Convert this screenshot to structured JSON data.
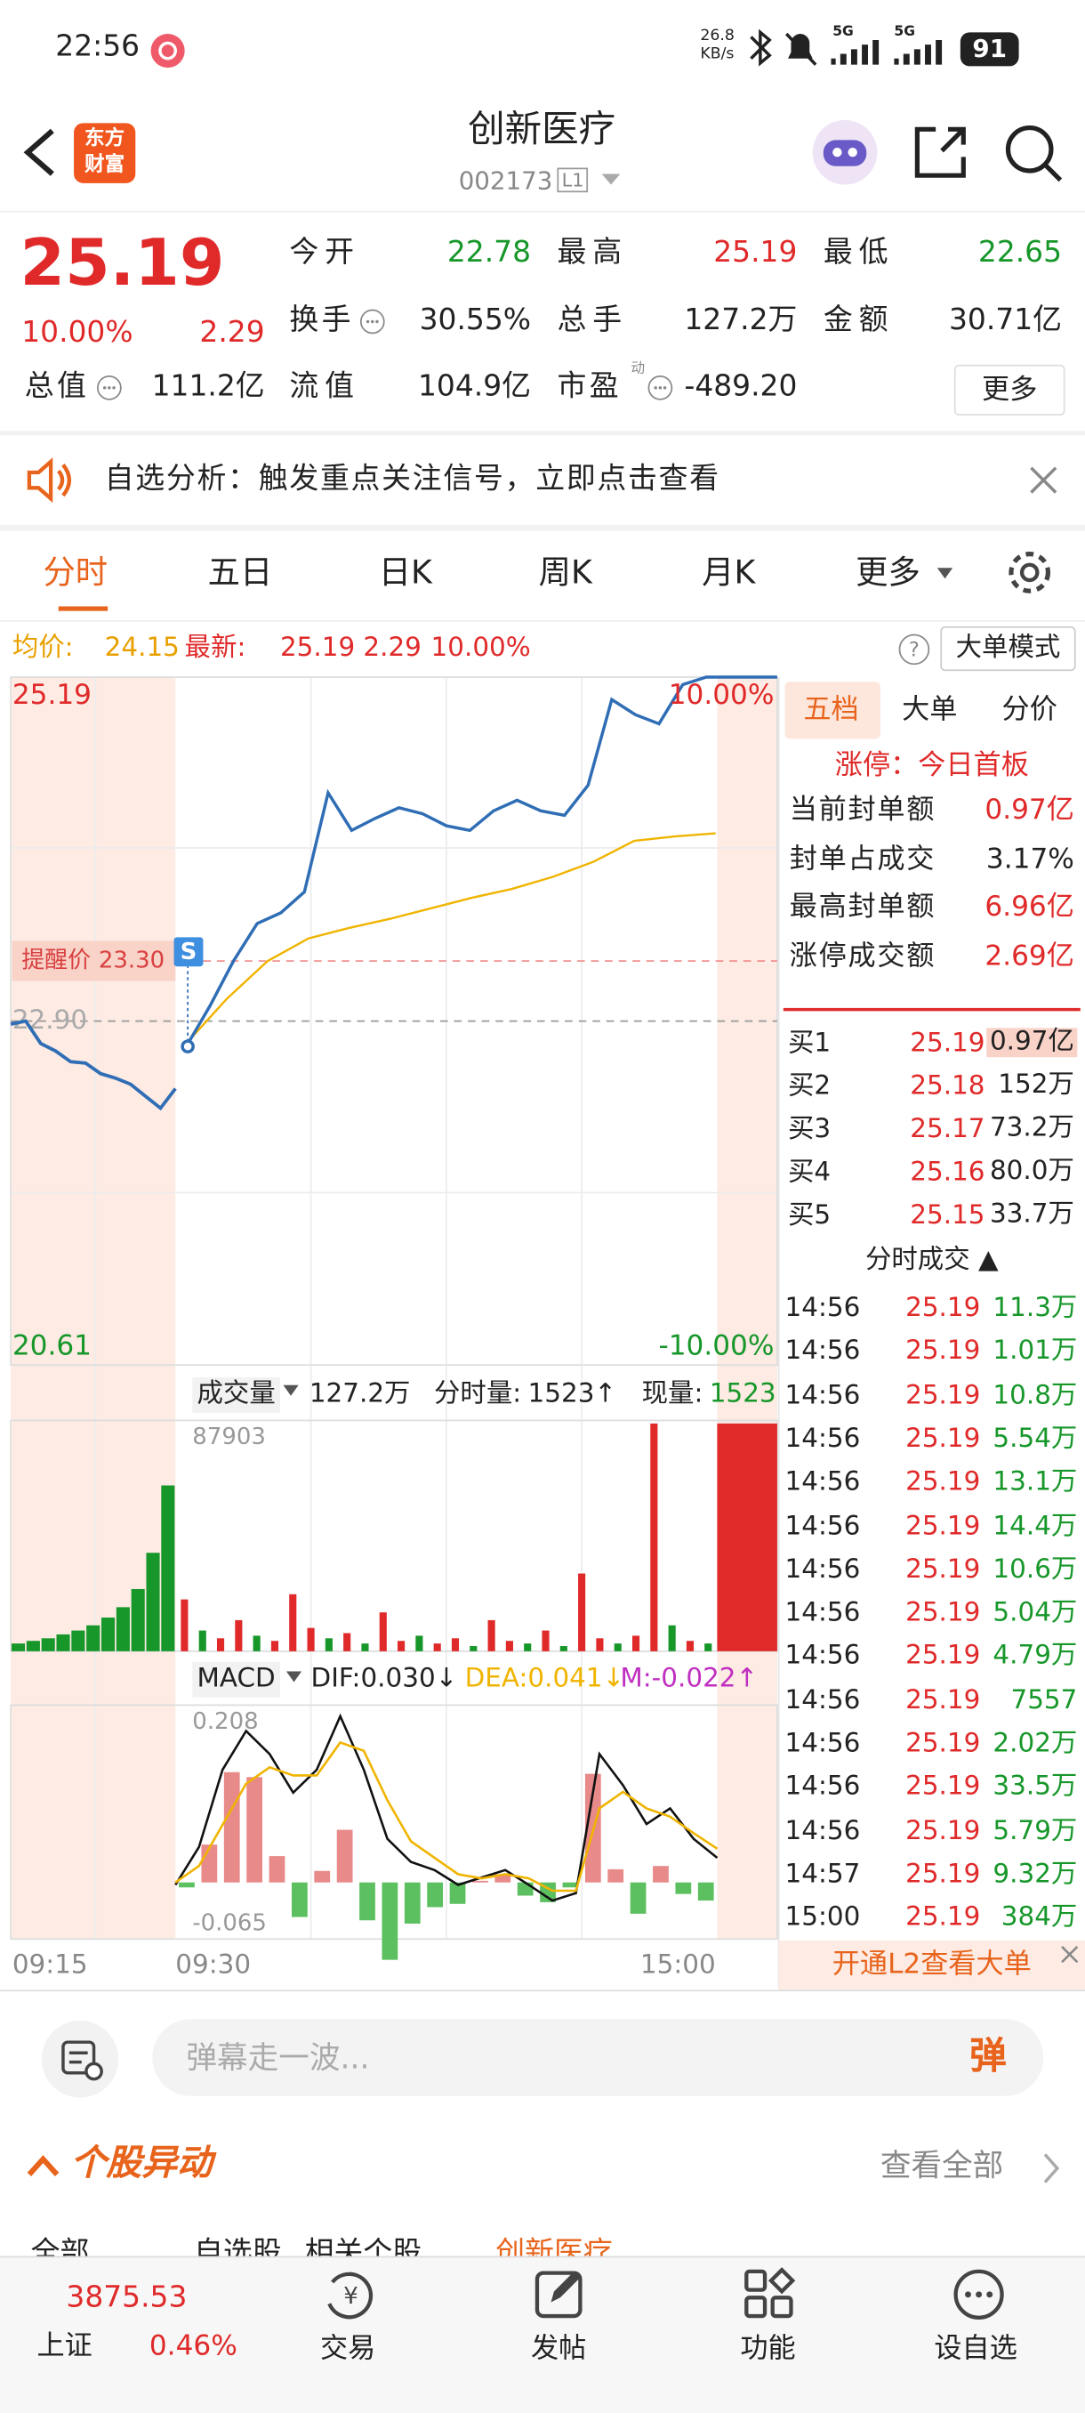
{
  "status_bar": {
    "time": "22:56",
    "net_speed": "26.8",
    "net_unit": "KB/s",
    "network_1": "5G",
    "network_2": "5G",
    "battery": "91"
  },
  "header": {
    "logo_top": "东方",
    "logo_bottom": "财富",
    "title": "创新医疗",
    "code": "002173",
    "level": "L1"
  },
  "quote": {
    "price": "25.19",
    "change_pct": "10.00%",
    "change": "2.29",
    "fields": [
      {
        "label": "今开",
        "value": "22.78"
      },
      {
        "label": "最高",
        "value": "25.19"
      },
      {
        "label": "最低",
        "value": "22.65"
      },
      {
        "label": "换手",
        "value": "30.55%"
      },
      {
        "label": "总手",
        "value": "127.2万"
      },
      {
        "label": "金额",
        "value": "30.71亿"
      },
      {
        "label": "总值",
        "value": "111.2亿"
      },
      {
        "label": "流值",
        "value": "104.9亿"
      },
      {
        "label": "市盈",
        "value": "-489.20"
      }
    ],
    "pe_tag": "动",
    "more": "更多"
  },
  "banner": "自选分析：触发重点关注信号，立即点击查看",
  "tabs": [
    "分时",
    "五日",
    "日K",
    "周K",
    "月K",
    "更多"
  ],
  "info_line": {
    "avg_label": "均价:",
    "avg_value": "24.15",
    "last_label": "最新:",
    "last_value": "25.19",
    "last_change": "2.29",
    "last_pct": "10.00%",
    "mode": "大单模式"
  },
  "intraday_chart": {
    "ylim": [
      20.61,
      25.19
    ],
    "yticks": [
      25.19,
      20.61
    ],
    "y2lim": [
      -10,
      10
    ],
    "y2ticks": [
      {
        "value": 10,
        "label": "10.00%"
      },
      {
        "value": -10,
        "label": "-10.00%"
      }
    ],
    "prev_close": {
      "value": 22.9,
      "label": "22.90"
    },
    "alert_text": "提醒价",
    "alert": {
      "value": 23.3,
      "label": "23.30"
    },
    "signal": "S",
    "premarket": {
      "color": "#2f6db5",
      "values": [
        22.88,
        22.9,
        22.75,
        22.7,
        22.63,
        22.62,
        22.55,
        22.52,
        22.48,
        22.4,
        22.32,
        22.45
      ]
    },
    "price": {
      "color": "#2f6db5",
      "values": [
        22.73,
        23.0,
        23.3,
        23.55,
        23.62,
        23.76,
        24.42,
        24.17,
        24.25,
        24.32,
        24.28,
        24.2,
        24.17,
        24.3,
        24.37,
        24.3,
        24.27,
        24.47,
        25.04,
        24.94,
        24.88,
        25.14,
        25.19,
        25.19,
        25.19,
        25.19
      ]
    },
    "avg": {
      "color": "#f0b400",
      "values": [
        22.75,
        23.05,
        23.3,
        23.45,
        23.52,
        23.58,
        23.65,
        23.72,
        23.78,
        23.86,
        23.96,
        24.1,
        24.13,
        24.15
      ]
    }
  },
  "volume_chart": {
    "label": "成交量",
    "total": "127.2万",
    "minute_label": "分时量:",
    "minute_value": "1523↑",
    "current_label": "现量:",
    "current_value": "1523",
    "ylim": [
      0,
      87903
    ],
    "yticks": [
      87903
    ],
    "premarket": {
      "color": "#17972a",
      "values": [
        3000,
        4000,
        5000,
        6500,
        8000,
        10000,
        13000,
        17000,
        24000,
        38000,
        64000
      ]
    },
    "values": [
      20000,
      8000,
      5000,
      12000,
      6000,
      4000,
      22000,
      9000,
      5000,
      7000,
      3000,
      15000,
      4000,
      6000,
      3000,
      5000,
      2000,
      12000,
      4000,
      3000,
      8000,
      2000,
      30000,
      5000,
      3000,
      6000,
      87903,
      10000,
      4000,
      3000
    ],
    "colors": [
      "#e02a2a",
      "#17972a",
      "#e02a2a",
      "#e02a2a",
      "#17972a",
      "#e02a2a",
      "#e02a2a",
      "#e02a2a",
      "#17972a",
      "#e02a2a",
      "#17972a",
      "#e02a2a",
      "#e02a2a",
      "#17972a",
      "#e02a2a",
      "#e02a2a",
      "#17972a",
      "#e02a2a",
      "#e02a2a",
      "#17972a",
      "#e02a2a",
      "#17972a",
      "#e02a2a",
      "#e02a2a",
      "#17972a",
      "#e02a2a",
      "#e02a2a",
      "#17972a",
      "#e02a2a",
      "#17972a"
    ],
    "closing": {
      "color": "#e02a2a",
      "value": 87903
    }
  },
  "macd_chart": {
    "label": "MACD",
    "dif": "DIF:0.030↓",
    "dea": "DEA:0.041↓",
    "m": "M:-0.022↑",
    "ylim": [
      -0.065,
      0.208
    ],
    "yticks": [
      0.208,
      -0.065
    ],
    "dif_color": "#111111",
    "dea_color": "#f0b400",
    "up_color": "#e88a8a",
    "down_color": "#5cc060",
    "dif_values": [
      -0.003,
      0.043,
      0.137,
      0.184,
      0.156,
      0.109,
      0.137,
      0.202,
      0.137,
      0.053,
      0.025,
      0.015,
      -0.003,
      0.006,
      0.015,
      -0.003,
      -0.022,
      -0.013,
      0.156,
      0.118,
      0.071,
      0.09,
      0.053,
      0.03
    ],
    "dea_values": [
      0.0,
      0.02,
      0.07,
      0.12,
      0.14,
      0.13,
      0.13,
      0.17,
      0.16,
      0.1,
      0.05,
      0.03,
      0.01,
      0.005,
      0.01,
      0.005,
      -0.01,
      -0.01,
      0.09,
      0.11,
      0.09,
      0.08,
      0.06,
      0.041
    ],
    "m_values": [
      -0.006,
      0.046,
      0.134,
      0.128,
      0.032,
      -0.042,
      0.014,
      0.064,
      -0.046,
      -0.094,
      -0.05,
      -0.03,
      -0.026,
      0.002,
      0.01,
      -0.016,
      -0.024,
      -0.006,
      0.132,
      0.016,
      -0.038,
      0.02,
      -0.014,
      -0.022
    ]
  },
  "time_axis": [
    "09:15",
    "09:30",
    "15:00"
  ],
  "side_panel": {
    "tabs": [
      "五档",
      "大单",
      "分价"
    ],
    "limit_status": "涨停：今日首板",
    "seal_stats": [
      {
        "label": "当前封单额",
        "value": "0.97亿"
      },
      {
        "label": "封单占成交",
        "value": "3.17%"
      },
      {
        "label": "最高封单额",
        "value": "6.96亿"
      },
      {
        "label": "涨停成交额",
        "value": "2.69亿"
      }
    ],
    "bids": [
      {
        "level": "买1",
        "price": "25.19",
        "volume": "0.97亿"
      },
      {
        "level": "买2",
        "price": "25.18",
        "volume": "152万"
      },
      {
        "level": "买3",
        "price": "25.17",
        "volume": "73.2万"
      },
      {
        "level": "买4",
        "price": "25.16",
        "volume": "80.0万"
      },
      {
        "level": "买5",
        "price": "25.15",
        "volume": "33.7万"
      }
    ],
    "trades_title": "分时成交",
    "trades": [
      [
        "14:56",
        "25.19",
        "11.3万"
      ],
      [
        "14:56",
        "25.19",
        "1.01万"
      ],
      [
        "14:56",
        "25.19",
        "10.8万"
      ],
      [
        "14:56",
        "25.19",
        "5.54万"
      ],
      [
        "14:56",
        "25.19",
        "13.1万"
      ],
      [
        "14:56",
        "25.19",
        "14.4万"
      ],
      [
        "14:56",
        "25.19",
        "10.6万"
      ],
      [
        "14:56",
        "25.19",
        "5.04万"
      ],
      [
        "14:56",
        "25.19",
        "4.79万"
      ],
      [
        "14:56",
        "25.19",
        "7557"
      ],
      [
        "14:56",
        "25.19",
        "2.02万"
      ],
      [
        "14:56",
        "25.19",
        "33.5万"
      ],
      [
        "14:56",
        "25.19",
        "5.79万"
      ],
      [
        "14:57",
        "25.19",
        "9.32万"
      ],
      [
        "15:00",
        "25.19",
        "384万"
      ]
    ],
    "l2_promo": "开通L2查看大单"
  },
  "comment": {
    "placeholder": "弹幕走一波...",
    "button": "弹"
  },
  "movers": {
    "title": "个股异动",
    "view_all": "查看全部",
    "tabs": [
      "全部",
      "自选股",
      "相关个股",
      "创新医疗"
    ]
  },
  "bottom_nav": {
    "index_value": "3875.53",
    "index_name": "上证",
    "index_change": "0.46%",
    "items": [
      "交易",
      "发帖",
      "功能",
      "设自选"
    ]
  }
}
